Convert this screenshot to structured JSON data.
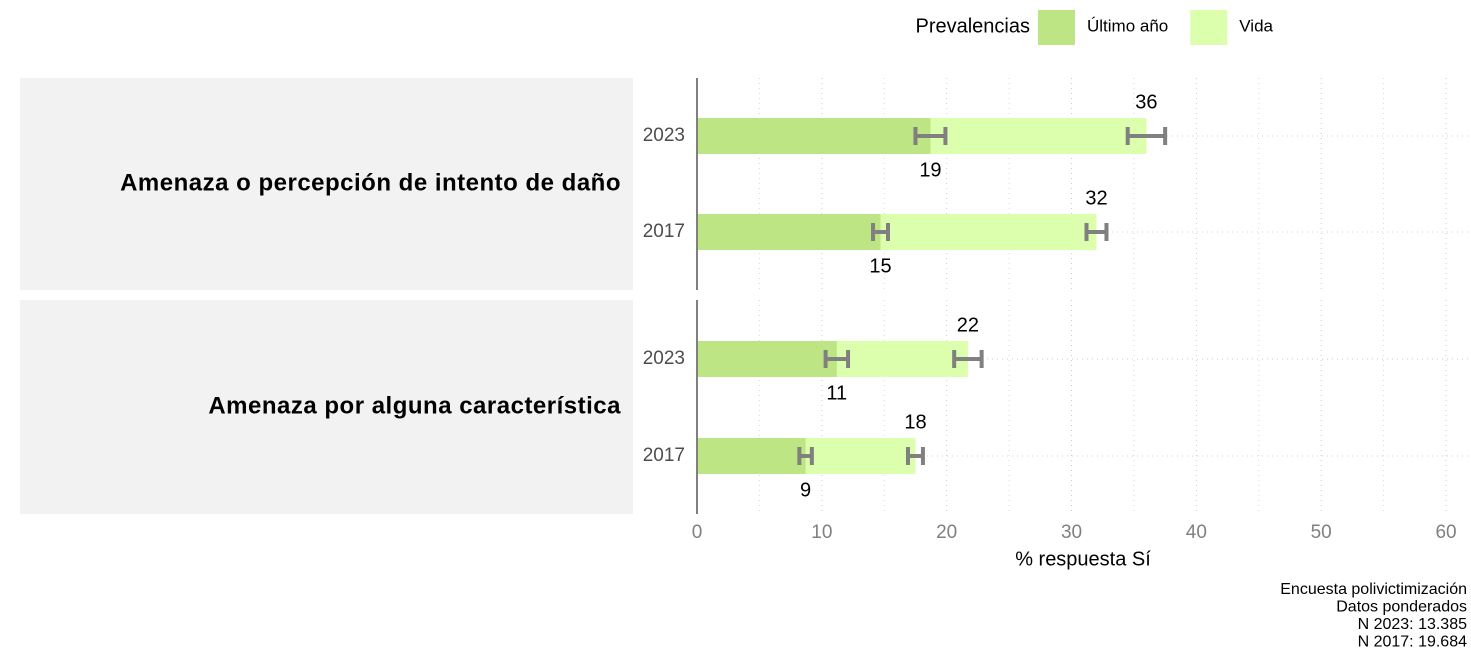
{
  "chart_data": {
    "type": "bar",
    "orientation": "horizontal",
    "legend_title": "Prevalencias",
    "legend_position": "top",
    "series": [
      {
        "name": "Último año",
        "color": "#bde584"
      },
      {
        "name": "Vida",
        "color": "#dcffae"
      }
    ],
    "panels": [
      {
        "title": "Amenaza o percepción de intento de daño",
        "categories": [
          "2023",
          "2017"
        ],
        "series": [
          {
            "values": [
              18.7,
              14.7
            ],
            "errors": [
              1.2,
              0.6
            ],
            "value_labels": [
              "19",
              "15"
            ]
          },
          {
            "values": [
              36.0,
              32.0
            ],
            "errors": [
              1.5,
              0.8
            ],
            "value_labels": [
              "36",
              "32"
            ]
          }
        ]
      },
      {
        "title": "Amenaza por alguna característica",
        "categories": [
          "2023",
          "2017"
        ],
        "series": [
          {
            "values": [
              11.2,
              8.7
            ],
            "errors": [
              0.9,
              0.5
            ],
            "value_labels": [
              "11",
              "9"
            ]
          },
          {
            "values": [
              21.7,
              17.5
            ],
            "errors": [
              1.1,
              0.6
            ],
            "value_labels": [
              "22",
              "18"
            ]
          }
        ]
      }
    ],
    "xlabel": "% respuesta Sí",
    "xlim": [
      0,
      62
    ],
    "xticks": [
      0,
      10,
      20,
      30,
      40,
      50,
      60
    ],
    "minor_xticks": [
      5,
      15,
      25,
      35,
      45,
      55
    ],
    "grid": true,
    "caption": [
      "Encuesta polivictimización",
      "Datos ponderados",
      "N 2023: 13.385",
      "N 2017: 19.684"
    ]
  }
}
